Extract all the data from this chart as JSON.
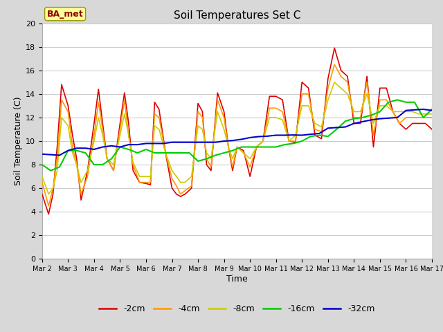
{
  "title": "Soil Temperatures Set C",
  "xlabel": "Time",
  "ylabel": "Soil Temperature (C)",
  "ylim": [
    0,
    20
  ],
  "xlim": [
    0,
    15
  ],
  "fig_bg_color": "#d8d8d8",
  "plot_bg_color": "#ffffff",
  "annotation_text": "BA_met",
  "annotation_color": "#8B0000",
  "annotation_bg": "#ffff99",
  "annotation_edge": "#999900",
  "xtick_labels": [
    "Mar 2",
    "Mar 3",
    "Mar 4",
    "Mar 5",
    "Mar 6",
    "Mar 7",
    "Mar 8",
    "Mar 9",
    "Mar 10",
    "Mar 11",
    "Mar 12",
    "Mar 13",
    "Mar 14",
    "Mar 15",
    "Mar 16",
    "Mar 17"
  ],
  "ytick_values": [
    0,
    2,
    4,
    6,
    8,
    10,
    12,
    14,
    16,
    18,
    20
  ],
  "series": {
    "-2cm": {
      "color": "#dd0000",
      "linewidth": 1.2,
      "x": [
        0,
        0.25,
        0.42,
        0.58,
        0.75,
        1.0,
        1.17,
        1.33,
        1.5,
        1.75,
        2.0,
        2.17,
        2.33,
        2.5,
        2.75,
        3.0,
        3.17,
        3.33,
        3.5,
        3.75,
        4.0,
        4.17,
        4.33,
        4.5,
        4.75,
        5.0,
        5.17,
        5.33,
        5.5,
        5.75,
        6.0,
        6.17,
        6.33,
        6.5,
        6.75,
        7.0,
        7.17,
        7.33,
        7.5,
        7.75,
        8.0,
        8.25,
        8.5,
        8.75,
        9.0,
        9.25,
        9.5,
        9.75,
        10.0,
        10.25,
        10.5,
        10.75,
        11.0,
        11.25,
        11.5,
        11.75,
        12.0,
        12.25,
        12.5,
        12.75,
        13.0,
        13.25,
        13.5,
        13.75,
        14.0,
        14.25,
        14.5,
        14.75,
        15.0
      ],
      "y": [
        5.5,
        3.8,
        5.5,
        9.5,
        14.8,
        13.0,
        10.5,
        8.5,
        5.0,
        7.5,
        11.5,
        14.4,
        11.5,
        8.5,
        7.5,
        11.5,
        14.1,
        11.5,
        7.5,
        6.5,
        6.4,
        6.3,
        13.3,
        12.7,
        9.0,
        6.0,
        5.5,
        5.3,
        5.5,
        6.0,
        13.2,
        12.5,
        8.0,
        7.5,
        14.1,
        12.5,
        9.5,
        7.5,
        9.5,
        9.2,
        7.0,
        9.5,
        10.0,
        13.8,
        13.8,
        13.5,
        10.0,
        9.9,
        15.0,
        14.5,
        10.5,
        10.2,
        15.3,
        17.9,
        16.0,
        15.5,
        11.5,
        11.5,
        15.5,
        9.5,
        14.5,
        14.5,
        12.5,
        11.5,
        11.0,
        11.5,
        11.5,
        11.5,
        11.0
      ]
    },
    "-4cm": {
      "color": "#ff9900",
      "linewidth": 1.2,
      "x": [
        0,
        0.25,
        0.42,
        0.58,
        0.75,
        1.0,
        1.17,
        1.33,
        1.5,
        1.75,
        2.0,
        2.17,
        2.33,
        2.5,
        2.75,
        3.0,
        3.17,
        3.33,
        3.5,
        3.75,
        4.0,
        4.17,
        4.33,
        4.5,
        4.75,
        5.0,
        5.17,
        5.33,
        5.5,
        5.75,
        6.0,
        6.17,
        6.33,
        6.5,
        6.75,
        7.0,
        7.17,
        7.33,
        7.5,
        7.75,
        8.0,
        8.25,
        8.5,
        8.75,
        9.0,
        9.25,
        9.5,
        9.75,
        10.0,
        10.25,
        10.5,
        10.75,
        11.0,
        11.25,
        11.5,
        11.75,
        12.0,
        12.25,
        12.5,
        12.75,
        13.0,
        13.25,
        13.5,
        13.75,
        14.0,
        14.25,
        14.5,
        14.75,
        15.0
      ],
      "y": [
        6.5,
        4.5,
        6.0,
        8.5,
        13.5,
        12.5,
        9.5,
        8.0,
        5.5,
        7.0,
        10.5,
        13.3,
        11.0,
        8.5,
        7.5,
        11.0,
        13.5,
        10.5,
        8.0,
        6.5,
        6.5,
        6.5,
        12.3,
        12.0,
        9.0,
        6.8,
        6.2,
        5.5,
        5.8,
        6.2,
        12.5,
        12.0,
        8.5,
        7.8,
        13.5,
        12.0,
        9.5,
        7.8,
        9.5,
        9.0,
        7.8,
        9.5,
        10.0,
        12.8,
        12.8,
        12.5,
        10.0,
        10.0,
        14.0,
        14.0,
        11.0,
        10.8,
        14.5,
        16.5,
        15.5,
        15.0,
        12.0,
        12.0,
        15.0,
        10.5,
        13.5,
        13.5,
        12.5,
        11.5,
        12.0,
        12.0,
        12.0,
        12.0,
        12.0
      ]
    },
    "-8cm": {
      "color": "#cccc00",
      "linewidth": 1.2,
      "x": [
        0,
        0.25,
        0.42,
        0.58,
        0.75,
        1.0,
        1.17,
        1.33,
        1.5,
        1.75,
        2.0,
        2.17,
        2.33,
        2.5,
        2.75,
        3.0,
        3.17,
        3.33,
        3.5,
        3.75,
        4.0,
        4.17,
        4.33,
        4.5,
        4.75,
        5.0,
        5.17,
        5.33,
        5.5,
        5.75,
        6.0,
        6.17,
        6.33,
        6.5,
        6.75,
        7.0,
        7.17,
        7.33,
        7.5,
        7.75,
        8.0,
        8.25,
        8.5,
        8.75,
        9.0,
        9.25,
        9.5,
        9.75,
        10.0,
        10.25,
        10.5,
        10.75,
        11.0,
        11.25,
        11.5,
        11.75,
        12.0,
        12.25,
        12.5,
        12.75,
        13.0,
        13.25,
        13.5,
        13.75,
        14.0,
        14.25,
        14.5,
        14.75,
        15.0
      ],
      "y": [
        7.0,
        5.5,
        6.0,
        7.5,
        12.0,
        11.3,
        9.0,
        8.0,
        6.5,
        7.5,
        10.0,
        12.0,
        10.5,
        8.5,
        8.0,
        10.5,
        12.3,
        10.5,
        8.2,
        7.0,
        7.0,
        7.0,
        11.3,
        11.0,
        9.0,
        7.5,
        7.0,
        6.5,
        6.5,
        7.0,
        11.3,
        11.0,
        9.0,
        8.5,
        12.5,
        11.0,
        9.5,
        8.5,
        9.5,
        9.0,
        8.5,
        9.5,
        10.0,
        12.0,
        12.0,
        11.8,
        10.0,
        10.5,
        13.0,
        13.0,
        11.5,
        11.2,
        13.5,
        15.0,
        14.5,
        14.0,
        12.5,
        12.5,
        14.0,
        11.5,
        13.0,
        13.0,
        12.5,
        12.5,
        12.5,
        12.5,
        12.3,
        12.3,
        12.3
      ]
    },
    "-16cm": {
      "color": "#00cc00",
      "linewidth": 1.5,
      "x": [
        0,
        0.33,
        0.67,
        1.0,
        1.33,
        1.67,
        2.0,
        2.33,
        2.67,
        3.0,
        3.33,
        3.67,
        4.0,
        4.33,
        4.67,
        5.0,
        5.33,
        5.67,
        6.0,
        6.33,
        6.67,
        7.0,
        7.33,
        7.67,
        8.0,
        8.33,
        8.67,
        9.0,
        9.33,
        9.67,
        10.0,
        10.33,
        10.67,
        11.0,
        11.33,
        11.67,
        12.0,
        12.33,
        12.67,
        13.0,
        13.33,
        13.67,
        14.0,
        14.33,
        14.67,
        15.0
      ],
      "y": [
        8.0,
        7.5,
        7.8,
        9.2,
        9.2,
        9.0,
        8.0,
        8.0,
        8.5,
        9.5,
        9.3,
        9.0,
        9.3,
        9.0,
        9.0,
        9.0,
        9.0,
        9.0,
        8.3,
        8.5,
        8.8,
        9.0,
        9.2,
        9.5,
        9.5,
        9.5,
        9.5,
        9.5,
        9.7,
        9.8,
        10.0,
        10.4,
        10.5,
        10.4,
        11.0,
        11.7,
        11.9,
        12.0,
        12.2,
        12.5,
        13.3,
        13.5,
        13.3,
        13.3,
        12.0,
        12.7
      ]
    },
    "-32cm": {
      "color": "#0000cc",
      "linewidth": 1.5,
      "x": [
        0,
        0.33,
        0.67,
        1.0,
        1.33,
        1.67,
        2.0,
        2.33,
        2.67,
        3.0,
        3.33,
        3.67,
        4.0,
        4.33,
        4.67,
        5.0,
        5.33,
        5.67,
        6.0,
        6.33,
        6.67,
        7.0,
        7.33,
        7.67,
        8.0,
        8.33,
        8.67,
        9.0,
        9.33,
        9.67,
        10.0,
        10.33,
        10.67,
        11.0,
        11.33,
        11.67,
        12.0,
        12.33,
        12.67,
        13.0,
        13.33,
        13.67,
        14.0,
        14.33,
        14.67,
        15.0
      ],
      "y": [
        8.9,
        8.85,
        8.8,
        9.2,
        9.4,
        9.4,
        9.3,
        9.5,
        9.6,
        9.5,
        9.7,
        9.7,
        9.8,
        9.8,
        9.8,
        9.9,
        9.9,
        9.9,
        9.9,
        9.9,
        9.9,
        10.0,
        10.05,
        10.15,
        10.3,
        10.38,
        10.42,
        10.5,
        10.5,
        10.52,
        10.5,
        10.58,
        10.65,
        11.1,
        11.15,
        11.2,
        11.5,
        11.65,
        11.8,
        11.9,
        11.95,
        12.0,
        12.6,
        12.65,
        12.7,
        12.6
      ]
    }
  },
  "legend_order": [
    "-2cm",
    "-4cm",
    "-8cm",
    "-16cm",
    "-32cm"
  ],
  "legend_colors": {
    "-2cm": "#dd0000",
    "-4cm": "#ff9900",
    "-8cm": "#cccc00",
    "-16cm": "#00cc00",
    "-32cm": "#0000cc"
  }
}
